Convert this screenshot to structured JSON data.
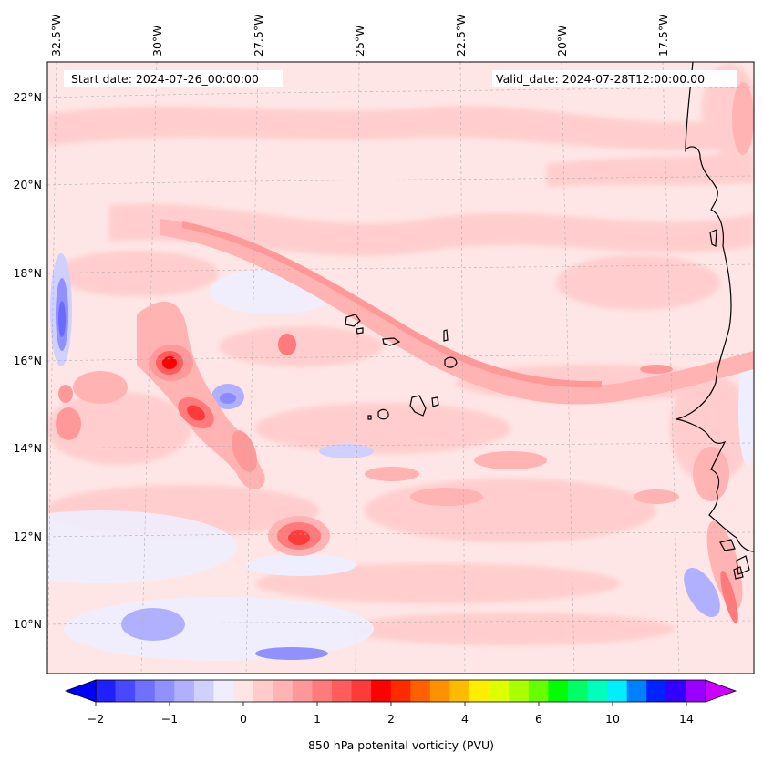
{
  "map": {
    "start_label": "Start date: 2024-07-26_00:00:00",
    "valid_label": "Valid_date: 2024-07-28T12:00:00.00",
    "lon_ticks": [
      "32.5°W",
      "30°W",
      "27.5°W",
      "25°W",
      "22.5°W",
      "20°W",
      "17.5°W"
    ],
    "lat_ticks": [
      "22°N",
      "20°N",
      "18°N",
      "16°N",
      "14°N",
      "12°N",
      "10°N"
    ],
    "extent": {
      "lon": [
        -33.0,
        -15.5
      ],
      "lat": [
        8.9,
        22.8
      ]
    }
  },
  "colorbar": {
    "label": "850 hPa potenital vorticity (PVU)",
    "tick_labels": [
      "−2",
      "−1",
      "0",
      "1",
      "2",
      "4",
      "6",
      "10",
      "14"
    ],
    "colors": [
      "#0000ff",
      "#2020ff",
      "#4848ff",
      "#7070ff",
      "#9090ff",
      "#b0b0ff",
      "#d0d0ff",
      "#eeeeff",
      "#ffe6e6",
      "#ffcccc",
      "#ffb3b3",
      "#ff9999",
      "#ff7a7a",
      "#ff5c5c",
      "#ff3a3a",
      "#ff0000",
      "#ff2a00",
      "#ff6000",
      "#ff9000",
      "#ffbb00",
      "#ffee00",
      "#ddff00",
      "#aaff00",
      "#66ff00",
      "#00ff00",
      "#00ff66",
      "#00ffbb",
      "#00eeff",
      "#0080ff",
      "#0022ff",
      "#3300ff",
      "#9900ff",
      "#cc00ff"
    ]
  }
}
